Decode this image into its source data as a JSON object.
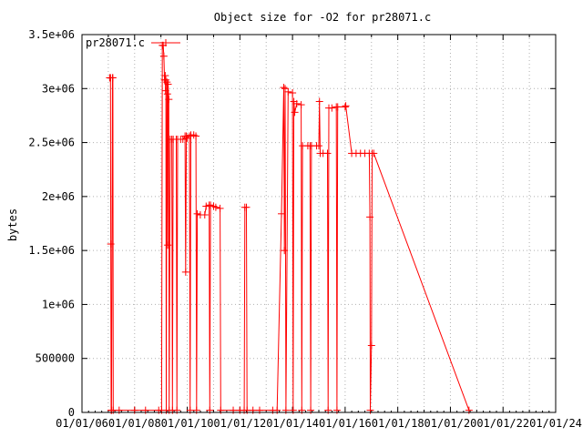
{
  "chart_data": {
    "type": "line",
    "title": "Object size for -O2 for pr28071.c",
    "xlabel": "",
    "ylabel": "bytes",
    "xlim": [
      "2006-01-01",
      "2024-01-01"
    ],
    "ylim": [
      0,
      3500000
    ],
    "x_tick_labels": [
      "01/01/06",
      "01/01/08",
      "01/01/10",
      "01/01/12",
      "01/01/14",
      "01/01/16",
      "01/01/18",
      "01/01/20",
      "01/01/22",
      "01/01/24"
    ],
    "y_tick_labels": [
      "0",
      "500000",
      "1e+06",
      "1.5e+06",
      "2e+06",
      "2.5e+06",
      "3e+06",
      "3.5e+06"
    ],
    "y_tick_values": [
      0,
      500000,
      1000000,
      1500000,
      2000000,
      2500000,
      3000000,
      3500000
    ],
    "grid": true,
    "legend_position": "top-left",
    "series": [
      {
        "name": "pr28071.c",
        "color": "#ff0000",
        "points": [
          [
            "2007-01-20",
            3100000
          ],
          [
            "2007-02-01",
            3100000
          ],
          [
            "2007-02-05",
            1560000
          ],
          [
            "2007-02-10",
            20000
          ],
          [
            "2007-02-15",
            20000
          ],
          [
            "2007-03-01",
            3100000
          ],
          [
            "2007-03-05",
            3100000
          ],
          [
            "2007-03-10",
            20000
          ],
          [
            "2007-06-01",
            20000
          ],
          [
            "2008-01-01",
            20000
          ],
          [
            "2008-06-01",
            20000
          ],
          [
            "2008-12-01",
            20000
          ],
          [
            "2009-01-10",
            20000
          ],
          [
            "2009-01-20",
            3400000
          ],
          [
            "2009-02-01",
            3400000
          ],
          [
            "2009-02-10",
            3300000
          ],
          [
            "2009-02-20",
            3080000
          ],
          [
            "2009-03-01",
            3120000
          ],
          [
            "2009-03-05",
            2980000
          ],
          [
            "2009-03-10",
            3080000
          ],
          [
            "2009-03-15",
            20000
          ],
          [
            "2009-03-25",
            3060000
          ],
          [
            "2009-04-01",
            2950000
          ],
          [
            "2009-04-05",
            1550000
          ],
          [
            "2009-04-10",
            3040000
          ],
          [
            "2009-04-20",
            2900000
          ],
          [
            "2009-04-25",
            20000
          ],
          [
            "2009-05-10",
            2530000
          ],
          [
            "2009-06-01",
            2530000
          ],
          [
            "2009-06-10",
            20000
          ],
          [
            "2009-06-20",
            2530000
          ],
          [
            "2009-08-01",
            2530000
          ],
          [
            "2009-08-10",
            20000
          ],
          [
            "2009-08-20",
            2530000
          ],
          [
            "2009-10-01",
            2530000
          ],
          [
            "2009-11-01",
            2530000
          ],
          [
            "2009-12-01",
            2560000
          ],
          [
            "2009-12-10",
            1300000
          ],
          [
            "2009-12-20",
            2560000
          ],
          [
            "2010-01-01",
            2540000
          ],
          [
            "2010-02-01",
            2560000
          ],
          [
            "2010-02-10",
            20000
          ],
          [
            "2010-02-20",
            2570000
          ],
          [
            "2010-04-01",
            2570000
          ],
          [
            "2010-05-01",
            2560000
          ],
          [
            "2010-05-10",
            20000
          ],
          [
            "2010-05-20",
            1840000
          ],
          [
            "2010-07-01",
            1830000
          ],
          [
            "2010-09-01",
            1830000
          ],
          [
            "2010-09-20",
            1910000
          ],
          [
            "2010-11-01",
            1920000
          ],
          [
            "2010-11-10",
            20000
          ],
          [
            "2010-11-20",
            1920000
          ],
          [
            "2011-01-01",
            1910000
          ],
          [
            "2011-02-01",
            1900000
          ],
          [
            "2011-04-01",
            1890000
          ],
          [
            "2011-04-10",
            20000
          ],
          [
            "2011-10-01",
            20000
          ],
          [
            "2012-01-01",
            20000
          ],
          [
            "2012-03-01",
            20000
          ],
          [
            "2012-03-10",
            1900000
          ],
          [
            "2012-04-01",
            1900000
          ],
          [
            "2012-04-10",
            20000
          ],
          [
            "2012-07-01",
            20000
          ],
          [
            "2012-10-01",
            20000
          ],
          [
            "2013-04-01",
            20000
          ],
          [
            "2013-06-01",
            20000
          ],
          [
            "2013-08-01",
            1840000
          ],
          [
            "2013-09-01",
            3010000
          ],
          [
            "2013-09-10",
            1500000
          ],
          [
            "2013-09-20",
            3000000
          ],
          [
            "2013-10-01",
            20000
          ],
          [
            "2013-11-01",
            2970000
          ],
          [
            "2014-01-01",
            2960000
          ],
          [
            "2014-01-10",
            20000
          ],
          [
            "2014-01-20",
            2880000
          ],
          [
            "2014-02-01",
            2780000
          ],
          [
            "2014-03-01",
            2860000
          ],
          [
            "2014-05-01",
            2850000
          ],
          [
            "2014-05-10",
            20000
          ],
          [
            "2014-05-20",
            2470000
          ],
          [
            "2014-08-01",
            2470000
          ],
          [
            "2014-09-01",
            2470000
          ],
          [
            "2014-09-10",
            20000
          ],
          [
            "2014-09-20",
            2470000
          ],
          [
            "2014-12-01",
            2470000
          ],
          [
            "2015-01-01",
            2470000
          ],
          [
            "2015-01-10",
            2880000
          ],
          [
            "2015-01-20",
            2400000
          ],
          [
            "2015-03-01",
            2400000
          ],
          [
            "2015-05-01",
            2400000
          ],
          [
            "2015-05-10",
            20000
          ],
          [
            "2015-05-20",
            2820000
          ],
          [
            "2015-07-01",
            2820000
          ],
          [
            "2015-09-01",
            2830000
          ],
          [
            "2015-09-10",
            20000
          ],
          [
            "2015-09-20",
            2830000
          ],
          [
            "2016-01-01",
            2830000
          ],
          [
            "2016-01-10",
            2840000
          ],
          [
            "2016-04-01",
            2400000
          ],
          [
            "2016-06-01",
            2400000
          ],
          [
            "2016-08-01",
            2400000
          ],
          [
            "2016-10-01",
            2400000
          ],
          [
            "2016-12-01",
            2400000
          ],
          [
            "2016-12-10",
            1810000
          ],
          [
            "2016-12-15",
            20000
          ],
          [
            "2017-01-01",
            620000
          ],
          [
            "2017-01-10",
            2400000
          ],
          [
            "2017-02-01",
            2400000
          ],
          [
            "2020-09-15",
            20000
          ]
        ]
      }
    ]
  }
}
